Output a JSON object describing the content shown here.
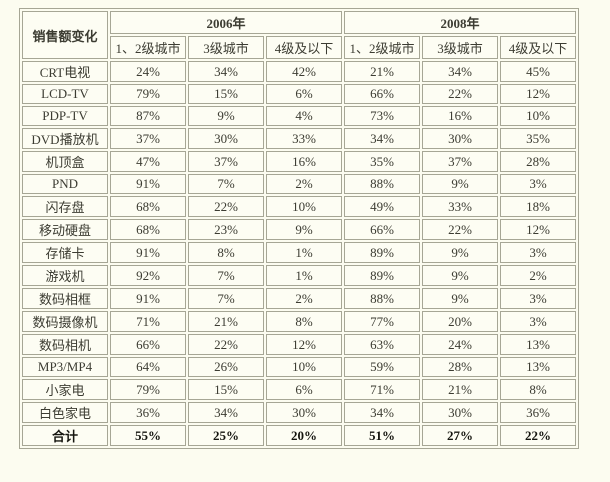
{
  "colors": {
    "page_background": "#fcfcf0",
    "cell_background": "#fdfdf3",
    "border": "#a6a695",
    "text": "#3c3c32",
    "bold_text": "#15150f"
  },
  "table": {
    "corner_label": "销售额变化",
    "year_groups": [
      {
        "label": "2006年"
      },
      {
        "label": "2008年"
      }
    ],
    "tier_headers": [
      "1、2级城市",
      "3级城市",
      "4级及以下",
      "1、2级城市",
      "3级城市",
      "4级及以下"
    ],
    "rows": [
      {
        "label": "CRT电视",
        "values": [
          "24%",
          "34%",
          "42%",
          "21%",
          "34%",
          "45%"
        ],
        "bold": false
      },
      {
        "label": "LCD-TV",
        "values": [
          "79%",
          "15%",
          "6%",
          "66%",
          "22%",
          "12%"
        ],
        "bold": false
      },
      {
        "label": "PDP-TV",
        "values": [
          "87%",
          "9%",
          "4%",
          "73%",
          "16%",
          "10%"
        ],
        "bold": false
      },
      {
        "label": "DVD播放机",
        "values": [
          "37%",
          "30%",
          "33%",
          "34%",
          "30%",
          "35%"
        ],
        "bold": false
      },
      {
        "label": "机顶盒",
        "values": [
          "47%",
          "37%",
          "16%",
          "35%",
          "37%",
          "28%"
        ],
        "bold": false
      },
      {
        "label": "PND",
        "values": [
          "91%",
          "7%",
          "2%",
          "88%",
          "9%",
          "3%"
        ],
        "bold": false
      },
      {
        "label": "闪存盘",
        "values": [
          "68%",
          "22%",
          "10%",
          "49%",
          "33%",
          "18%"
        ],
        "bold": false
      },
      {
        "label": "移动硬盘",
        "values": [
          "68%",
          "23%",
          "9%",
          "66%",
          "22%",
          "12%"
        ],
        "bold": false
      },
      {
        "label": "存储卡",
        "values": [
          "91%",
          "8%",
          "1%",
          "89%",
          "9%",
          "3%"
        ],
        "bold": false
      },
      {
        "label": "游戏机",
        "values": [
          "92%",
          "7%",
          "1%",
          "89%",
          "9%",
          "2%"
        ],
        "bold": false
      },
      {
        "label": "数码相框",
        "values": [
          "91%",
          "7%",
          "2%",
          "88%",
          "9%",
          "3%"
        ],
        "bold": false
      },
      {
        "label": "数码摄像机",
        "values": [
          "71%",
          "21%",
          "8%",
          "77%",
          "20%",
          "3%"
        ],
        "bold": false
      },
      {
        "label": "数码相机",
        "values": [
          "66%",
          "22%",
          "12%",
          "63%",
          "24%",
          "13%"
        ],
        "bold": false
      },
      {
        "label": "MP3/MP4",
        "values": [
          "64%",
          "26%",
          "10%",
          "59%",
          "28%",
          "13%"
        ],
        "bold": false
      },
      {
        "label": "小家电",
        "values": [
          "79%",
          "15%",
          "6%",
          "71%",
          "21%",
          "8%"
        ],
        "bold": false
      },
      {
        "label": "白色家电",
        "values": [
          "36%",
          "34%",
          "30%",
          "34%",
          "30%",
          "36%"
        ],
        "bold": false
      },
      {
        "label": "合计",
        "values": [
          "55%",
          "25%",
          "20%",
          "51%",
          "27%",
          "22%"
        ],
        "bold": true
      }
    ]
  }
}
